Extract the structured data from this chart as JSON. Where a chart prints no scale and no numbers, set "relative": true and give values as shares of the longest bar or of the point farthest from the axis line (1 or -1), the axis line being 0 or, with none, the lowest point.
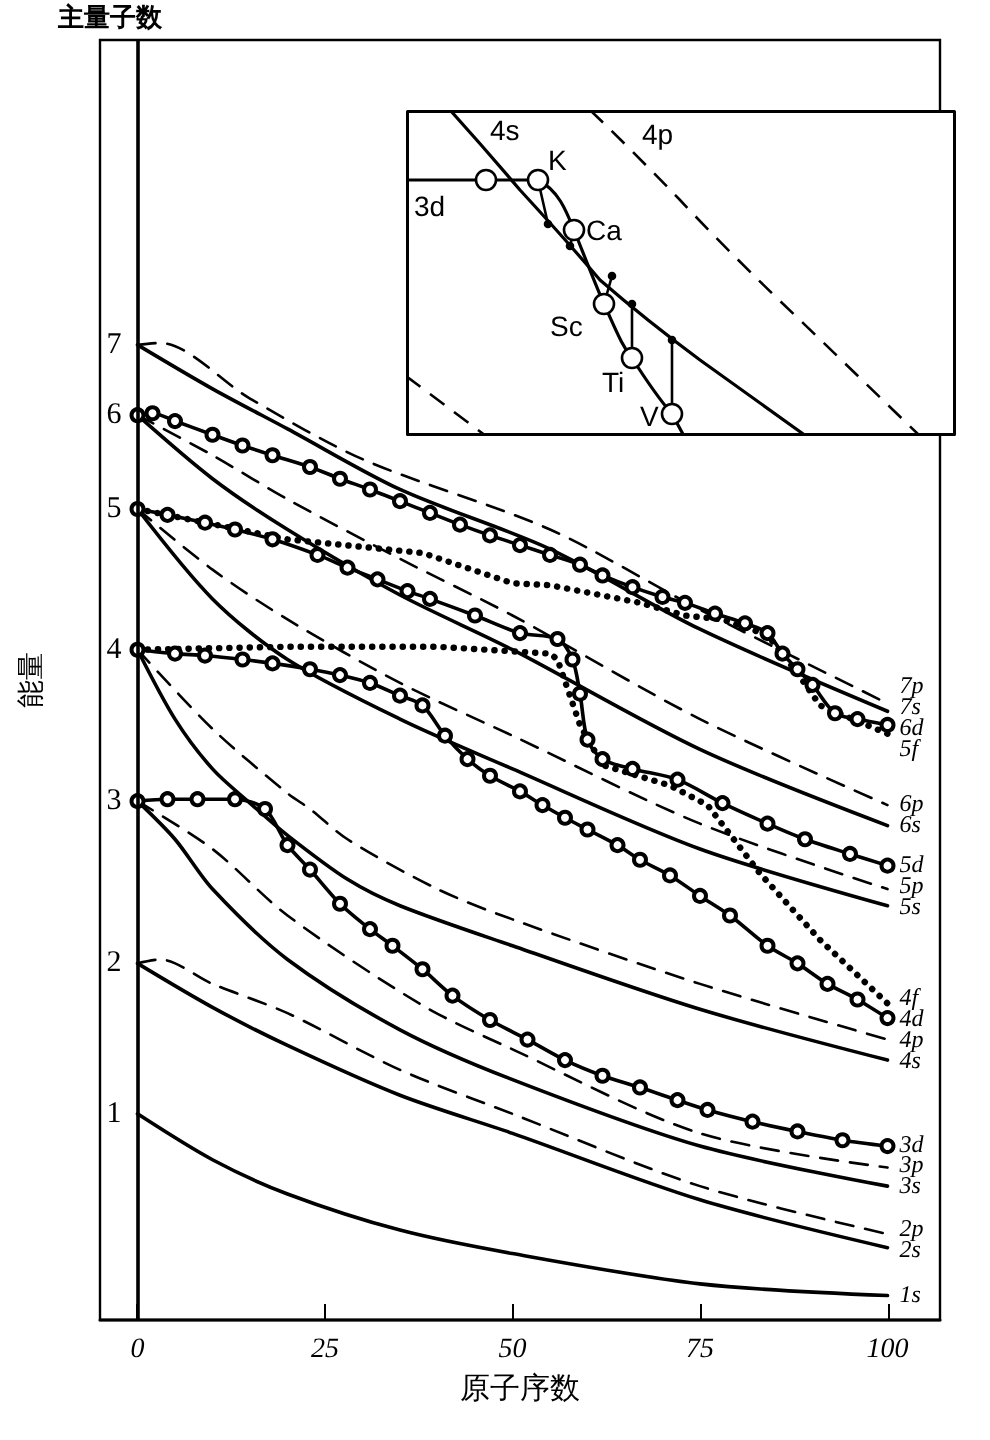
{
  "chart_data": [
    {
      "type": "line",
      "relative": true,
      "xlabel": "原子序数",
      "ylabel": "能量",
      "xlim": [
        -5,
        107
      ],
      "xticks": [
        0,
        25,
        50,
        75,
        100
      ],
      "legend": false,
      "ref_lines": [
        {
          "axis": "x",
          "value": 0
        }
      ],
      "annotations": [
        "主量子数",
        "1",
        "2",
        "3",
        "4",
        "5",
        "6",
        "7"
      ],
      "series": [
        {
          "name": "1s",
          "color": "#000000",
          "line_style": "solid",
          "marker": "none",
          "x": [
            0,
            10,
            20,
            35,
            50,
            75,
            100
          ],
          "values": [
            0.211,
            0.164,
            0.129,
            0.092,
            0.068,
            0.037,
            0.025
          ]
        },
        {
          "name": "2s",
          "color": "#000000",
          "line_style": "solid",
          "marker": "none",
          "x": [
            0,
            10,
            20,
            35,
            50,
            75,
            100
          ],
          "values": [
            0.365,
            0.32,
            0.281,
            0.23,
            0.191,
            0.123,
            0.074
          ]
        },
        {
          "name": "2p",
          "color": "#000000",
          "line_style": "dashed",
          "marker": "none",
          "x": [
            0,
            3,
            10,
            20,
            35,
            50,
            75,
            100
          ],
          "values": [
            0.365,
            0.369,
            0.344,
            0.314,
            0.256,
            0.211,
            0.137,
            0.088
          ]
        },
        {
          "name": "3s",
          "color": "#000000",
          "line_style": "solid",
          "marker": "none",
          "x": [
            0,
            5,
            10,
            20,
            35,
            50,
            75,
            100
          ],
          "values": [
            0.531,
            0.492,
            0.441,
            0.369,
            0.297,
            0.246,
            0.178,
            0.137
          ]
        },
        {
          "name": "3p",
          "color": "#000000",
          "line_style": "dashed",
          "marker": "none",
          "x": [
            0,
            10,
            20,
            38,
            50,
            75,
            100
          ],
          "values": [
            0.531,
            0.482,
            0.414,
            0.322,
            0.277,
            0.191,
            0.156
          ]
        },
        {
          "name": "3d",
          "color": "#000000",
          "line_style": "solid",
          "marker": "circle",
          "x": [
            0,
            4,
            8,
            13,
            17,
            20,
            23,
            27,
            31,
            34,
            38,
            42,
            47,
            52,
            57,
            62,
            67,
            72,
            76,
            82,
            88,
            94,
            100
          ],
          "values": [
            0.531,
            0.533,
            0.533,
            0.533,
            0.523,
            0.486,
            0.461,
            0.426,
            0.4,
            0.383,
            0.359,
            0.332,
            0.307,
            0.287,
            0.266,
            0.25,
            0.238,
            0.225,
            0.215,
            0.203,
            0.193,
            0.184,
            0.178
          ]
        },
        {
          "name": "4s",
          "color": "#000000",
          "line_style": "solid",
          "marker": "none",
          "x": [
            0,
            5,
            10,
            15,
            20,
            28,
            35,
            50,
            75,
            100
          ],
          "values": [
            0.686,
            0.615,
            0.564,
            0.529,
            0.496,
            0.451,
            0.424,
            0.383,
            0.318,
            0.266
          ]
        },
        {
          "name": "4p",
          "color": "#000000",
          "line_style": "dashed",
          "marker": "none",
          "x": [
            0,
            10,
            20,
            23,
            28,
            40,
            50,
            75,
            100
          ],
          "values": [
            0.686,
            0.605,
            0.539,
            0.523,
            0.492,
            0.441,
            0.41,
            0.344,
            0.287
          ]
        },
        {
          "name": "4d",
          "color": "#000000",
          "line_style": "solid",
          "marker": "circle",
          "x": [
            0,
            5,
            9,
            14,
            18,
            23,
            27,
            31,
            35,
            38,
            41,
            44,
            47,
            51,
            54,
            57,
            60,
            64,
            67,
            71,
            75,
            79,
            84,
            88,
            92,
            96,
            100
          ],
          "values": [
            0.686,
            0.682,
            0.68,
            0.676,
            0.672,
            0.666,
            0.66,
            0.652,
            0.639,
            0.629,
            0.598,
            0.574,
            0.557,
            0.541,
            0.527,
            0.514,
            0.502,
            0.486,
            0.471,
            0.455,
            0.434,
            0.414,
            0.383,
            0.365,
            0.344,
            0.328,
            0.309
          ]
        },
        {
          "name": "4f",
          "color": "#000000",
          "line_style": "dotted",
          "marker": "none",
          "x": [
            0,
            20,
            40,
            55,
            56,
            59,
            62,
            71,
            76,
            83,
            91,
            100
          ],
          "values": [
            0.686,
            0.689,
            0.689,
            0.682,
            0.676,
            0.609,
            0.568,
            0.547,
            0.527,
            0.457,
            0.389,
            0.324
          ]
        },
        {
          "name": "5s",
          "color": "#000000",
          "line_style": "solid",
          "marker": "none",
          "x": [
            0,
            10,
            20,
            35,
            50,
            75,
            100
          ],
          "values": [
            0.83,
            0.738,
            0.676,
            0.615,
            0.564,
            0.482,
            0.424
          ]
        },
        {
          "name": "5p",
          "color": "#000000",
          "line_style": "dashed",
          "marker": "none",
          "x": [
            0,
            10,
            20,
            35,
            50,
            75,
            100
          ],
          "values": [
            0.83,
            0.768,
            0.717,
            0.652,
            0.598,
            0.508,
            0.441
          ]
        },
        {
          "name": "5d",
          "color": "#000000",
          "line_style": "solid",
          "marker": "circle",
          "x": [
            0,
            4,
            9,
            13,
            18,
            24,
            28,
            32,
            36,
            39,
            45,
            51,
            56,
            58,
            59,
            60,
            62,
            66,
            72,
            78,
            84,
            89,
            95,
            100
          ],
          "values": [
            0.83,
            0.824,
            0.816,
            0.809,
            0.799,
            0.783,
            0.77,
            0.758,
            0.746,
            0.738,
            0.721,
            0.703,
            0.697,
            0.676,
            0.641,
            0.594,
            0.574,
            0.564,
            0.553,
            0.529,
            0.508,
            0.492,
            0.477,
            0.465
          ]
        },
        {
          "name": "5f",
          "color": "#000000",
          "line_style": "dotted",
          "marker": "none",
          "x": [
            0,
            20,
            38,
            50,
            55,
            67,
            73,
            78,
            84,
            88,
            91,
            100
          ],
          "values": [
            0.83,
            0.799,
            0.785,
            0.754,
            0.752,
            0.734,
            0.721,
            0.717,
            0.701,
            0.662,
            0.629,
            0.6
          ]
        },
        {
          "name": "6s",
          "color": "#000000",
          "line_style": "solid",
          "marker": "none",
          "x": [
            0,
            10,
            20,
            35,
            50,
            75,
            100
          ],
          "values": [
            0.926,
            0.861,
            0.809,
            0.742,
            0.686,
            0.584,
            0.506
          ]
        },
        {
          "name": "6p",
          "color": "#000000",
          "line_style": "dashed",
          "marker": "none",
          "x": [
            0,
            10,
            20,
            35,
            50,
            75,
            100
          ],
          "values": [
            0.926,
            0.885,
            0.84,
            0.779,
            0.721,
            0.615,
            0.527
          ]
        },
        {
          "name": "6d",
          "color": "#000000",
          "line_style": "solid",
          "marker": "circle",
          "x": [
            0,
            2,
            5,
            10,
            14,
            18,
            23,
            27,
            31,
            35,
            39,
            43,
            47,
            51,
            55,
            59,
            62,
            66,
            70,
            73,
            77,
            81,
            84,
            86,
            88,
            90,
            93,
            96,
            100
          ],
          "values": [
            0.926,
            0.928,
            0.92,
            0.906,
            0.895,
            0.885,
            0.873,
            0.861,
            0.85,
            0.838,
            0.826,
            0.814,
            0.803,
            0.793,
            0.783,
            0.773,
            0.762,
            0.75,
            0.74,
            0.734,
            0.723,
            0.713,
            0.703,
            0.682,
            0.666,
            0.65,
            0.621,
            0.615,
            0.609
          ]
        },
        {
          "name": "7s",
          "color": "#000000",
          "line_style": "solid",
          "marker": "none",
          "x": [
            0,
            10,
            20,
            35,
            55,
            75,
            100
          ],
          "values": [
            0.998,
            0.953,
            0.912,
            0.85,
            0.789,
            0.707,
            0.623
          ]
        },
        {
          "name": "7p",
          "color": "#000000",
          "line_style": "dashed",
          "marker": "none",
          "x": [
            0,
            3,
            15,
            30,
            55,
            75,
            100
          ],
          "values": [
            0.998,
            1,
            0.943,
            0.881,
            0.809,
            0.727,
            0.631
          ]
        }
      ]
    },
    {
      "type": "other",
      "annotations": [
        "4s",
        "4p",
        "3d",
        "K",
        "Ca",
        "Sc",
        "Ti",
        "V"
      ]
    }
  ]
}
